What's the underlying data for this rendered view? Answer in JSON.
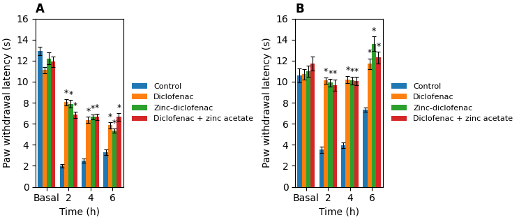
{
  "chart_data": [
    {
      "type": "bar",
      "title": "A",
      "categories": [
        "Basal",
        "2",
        "4",
        "6"
      ],
      "x_label": "Time (h)",
      "y_label": "Paw withdrawal latency (s)",
      "ylim": [
        0,
        16
      ],
      "yticks": [
        0,
        2,
        4,
        6,
        8,
        10,
        12,
        14,
        16
      ],
      "legend": "right",
      "series": [
        {
          "name": "Control",
          "values": [
            12.9,
            2.0,
            2.5,
            3.3
          ],
          "errors": [
            0.4,
            0.15,
            0.2,
            0.25
          ]
        },
        {
          "name": "Diclofenac",
          "values": [
            11.1,
            8.05,
            6.35,
            5.85
          ],
          "errors": [
            0.3,
            0.3,
            0.3,
            0.3
          ],
          "annotations": [
            null,
            "*",
            "*",
            "*"
          ]
        },
        {
          "name": "Zinc-diclofenac",
          "values": [
            12.2,
            7.9,
            6.65,
            5.35
          ],
          "errors": [
            0.55,
            0.35,
            0.25,
            0.2
          ],
          "annotations": [
            null,
            "*",
            "*",
            "*"
          ]
        },
        {
          "name": "Diclofenac + zinc acetate",
          "values": [
            11.9,
            6.85,
            6.65,
            6.65
          ],
          "errors": [
            0.5,
            0.3,
            0.3,
            0.35
          ],
          "annotations": [
            null,
            "*",
            "*",
            "*"
          ]
        }
      ]
    },
    {
      "type": "bar",
      "title": "B",
      "categories": [
        "Basal",
        "2",
        "4",
        "6"
      ],
      "x_label": "Time (h)",
      "y_label": "Paw withdrawal latency (s)",
      "ylim": [
        0,
        16
      ],
      "yticks": [
        0,
        2,
        4,
        6,
        8,
        10,
        12,
        14,
        16
      ],
      "legend": "right",
      "series": [
        {
          "name": "Control",
          "values": [
            10.6,
            3.55,
            3.95,
            7.35
          ],
          "errors": [
            0.65,
            0.3,
            0.25,
            0.2
          ]
        },
        {
          "name": "Diclofenac",
          "values": [
            10.7,
            10.1,
            10.2,
            11.7
          ],
          "errors": [
            0.5,
            0.3,
            0.35,
            0.5
          ],
          "annotations": [
            null,
            "*",
            "*",
            "*"
          ]
        },
        {
          "name": "Zinc-diclofenac",
          "values": [
            11.0,
            9.9,
            10.1,
            13.6
          ],
          "errors": [
            0.55,
            0.35,
            0.35,
            0.7
          ],
          "annotations": [
            null,
            "*",
            "*",
            "*"
          ]
        },
        {
          "name": "Diclofenac + zinc acetate",
          "values": [
            11.7,
            9.65,
            10.05,
            12.3
          ],
          "errors": [
            0.65,
            0.55,
            0.4,
            0.55
          ],
          "annotations": [
            null,
            "*",
            "*",
            "*"
          ]
        }
      ]
    }
  ]
}
